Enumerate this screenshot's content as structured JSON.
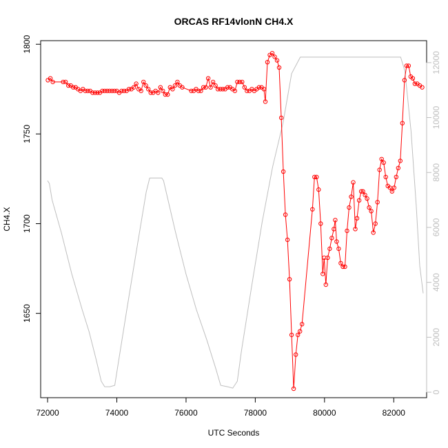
{
  "chart_data": {
    "type": "line",
    "title": "ORCAS RF14vlonN CH4.X",
    "xlabel": "UTC Seconds",
    "ylabel": "CH4.X",
    "xlim": [
      71800,
      82950
    ],
    "ylim": [
      1603,
      1802
    ],
    "y2lim": [
      -200,
      12800
    ],
    "x_ticks": [
      72000,
      74000,
      76000,
      78000,
      80000,
      82000
    ],
    "y_ticks": [
      1650,
      1700,
      1750,
      1800
    ],
    "y2_ticks": [
      0,
      2000,
      4000,
      6000,
      8000,
      10000,
      12000
    ],
    "colors": {
      "ch4": "#ff0000",
      "altitude": "#bebebe"
    },
    "series": [
      {
        "style": "line-with-open-circles",
        "color": "#ff0000",
        "axis": "left",
        "points": [
          [
            72010,
            1780
          ],
          [
            72080,
            1781
          ],
          [
            72150,
            1779
          ],
          [
            72450,
            1779
          ],
          [
            72520,
            1779
          ],
          [
            72600,
            1777
          ],
          [
            72670,
            1777
          ],
          [
            72740,
            1776
          ],
          [
            72810,
            1776
          ],
          [
            72880,
            1775
          ],
          [
            72950,
            1774
          ],
          [
            73020,
            1775
          ],
          [
            73090,
            1774
          ],
          [
            73160,
            1774
          ],
          [
            73230,
            1774
          ],
          [
            73300,
            1773
          ],
          [
            73370,
            1773
          ],
          [
            73440,
            1773
          ],
          [
            73510,
            1773
          ],
          [
            73580,
            1774
          ],
          [
            73650,
            1774
          ],
          [
            73720,
            1774
          ],
          [
            73790,
            1774
          ],
          [
            73860,
            1774
          ],
          [
            73930,
            1774
          ],
          [
            74000,
            1774
          ],
          [
            74070,
            1773
          ],
          [
            74140,
            1774
          ],
          [
            74210,
            1774
          ],
          [
            74280,
            1774
          ],
          [
            74350,
            1775
          ],
          [
            74420,
            1775
          ],
          [
            74490,
            1776
          ],
          [
            74560,
            1778
          ],
          [
            74630,
            1775
          ],
          [
            74700,
            1774
          ],
          [
            74770,
            1779
          ],
          [
            74840,
            1777
          ],
          [
            74910,
            1775
          ],
          [
            74980,
            1773
          ],
          [
            75050,
            1773
          ],
          [
            75120,
            1774
          ],
          [
            75190,
            1773
          ],
          [
            75260,
            1776
          ],
          [
            75330,
            1774
          ],
          [
            75400,
            1772
          ],
          [
            75470,
            1772
          ],
          [
            75540,
            1776
          ],
          [
            75610,
            1775
          ],
          [
            75680,
            1777
          ],
          [
            75750,
            1779
          ],
          [
            75820,
            1777
          ],
          [
            75890,
            1776
          ],
          [
            76150,
            1774
          ],
          [
            76220,
            1774
          ],
          [
            76290,
            1775
          ],
          [
            76360,
            1774
          ],
          [
            76430,
            1774
          ],
          [
            76500,
            1776
          ],
          [
            76570,
            1776
          ],
          [
            76640,
            1781
          ],
          [
            76710,
            1776
          ],
          [
            76780,
            1779
          ],
          [
            76850,
            1777
          ],
          [
            76920,
            1775
          ],
          [
            76990,
            1775
          ],
          [
            77060,
            1775
          ],
          [
            77130,
            1775
          ],
          [
            77200,
            1776
          ],
          [
            77270,
            1776
          ],
          [
            77340,
            1775
          ],
          [
            77410,
            1774
          ],
          [
            77480,
            1779
          ],
          [
            77550,
            1779
          ],
          [
            77620,
            1779
          ],
          [
            77690,
            1776
          ],
          [
            77760,
            1774
          ],
          [
            77830,
            1774
          ],
          [
            77900,
            1775
          ],
          [
            77970,
            1774
          ],
          [
            78040,
            1775
          ],
          [
            78110,
            1776
          ],
          [
            78180,
            1776
          ],
          [
            78250,
            1775
          ],
          [
            78290,
            1768
          ],
          [
            78350,
            1790
          ],
          [
            78420,
            1794
          ],
          [
            78490,
            1795
          ],
          [
            78560,
            1793
          ],
          [
            78630,
            1791
          ],
          [
            78690,
            1787
          ],
          [
            78750,
            1759
          ],
          [
            78810,
            1729
          ],
          [
            78870,
            1705
          ],
          [
            78930,
            1691
          ],
          [
            78990,
            1669
          ],
          [
            79050,
            1638
          ],
          [
            79110,
            1608
          ],
          [
            79170,
            1627
          ],
          [
            79230,
            1638
          ],
          [
            79290,
            1640
          ],
          [
            79350,
            1644
          ],
          [
            79650,
            1708
          ],
          [
            79710,
            1726
          ],
          [
            79770,
            1726
          ],
          [
            79830,
            1719
          ],
          [
            79890,
            1700
          ],
          [
            79950,
            1672
          ],
          [
            79990,
            1681
          ],
          [
            80040,
            1666
          ],
          [
            80090,
            1681
          ],
          [
            80150,
            1686
          ],
          [
            80210,
            1692
          ],
          [
            80270,
            1697
          ],
          [
            80310,
            1702
          ],
          [
            80350,
            1690
          ],
          [
            80410,
            1686
          ],
          [
            80470,
            1678
          ],
          [
            80530,
            1676
          ],
          [
            80590,
            1676
          ],
          [
            80650,
            1696
          ],
          [
            80710,
            1709
          ],
          [
            80770,
            1715
          ],
          [
            80830,
            1723
          ],
          [
            80890,
            1697
          ],
          [
            80940,
            1703
          ],
          [
            81000,
            1713
          ],
          [
            81060,
            1718
          ],
          [
            81110,
            1718
          ],
          [
            81170,
            1716
          ],
          [
            81230,
            1714
          ],
          [
            81290,
            1709
          ],
          [
            81350,
            1707
          ],
          [
            81410,
            1695
          ],
          [
            81470,
            1700
          ],
          [
            81530,
            1712
          ],
          [
            81590,
            1730
          ],
          [
            81650,
            1736
          ],
          [
            81710,
            1734
          ],
          [
            81770,
            1726
          ],
          [
            81830,
            1721
          ],
          [
            81890,
            1720
          ],
          [
            81950,
            1718
          ],
          [
            82010,
            1720
          ],
          [
            82070,
            1726
          ],
          [
            82130,
            1731
          ],
          [
            82190,
            1735
          ],
          [
            82250,
            1756
          ],
          [
            82310,
            1780
          ],
          [
            82370,
            1788
          ],
          [
            82430,
            1788
          ],
          [
            82490,
            1782
          ],
          [
            82550,
            1781
          ],
          [
            82610,
            1778
          ],
          [
            82680,
            1778
          ],
          [
            82750,
            1777
          ],
          [
            82820,
            1776
          ]
        ]
      },
      {
        "style": "line",
        "color": "#bebebe",
        "axis": "right",
        "points": [
          [
            72000,
            7700
          ],
          [
            72050,
            7600
          ],
          [
            72130,
            7000
          ],
          [
            72400,
            5800
          ],
          [
            72700,
            4300
          ],
          [
            73000,
            3000
          ],
          [
            73200,
            2200
          ],
          [
            73400,
            1200
          ],
          [
            73550,
            400
          ],
          [
            73650,
            200
          ],
          [
            73800,
            200
          ],
          [
            73940,
            250
          ],
          [
            74060,
            1200
          ],
          [
            74300,
            3100
          ],
          [
            74600,
            5400
          ],
          [
            74850,
            7300
          ],
          [
            74950,
            7800
          ],
          [
            75300,
            7800
          ],
          [
            75350,
            7700
          ],
          [
            75700,
            5800
          ],
          [
            76000,
            4300
          ],
          [
            76300,
            3000
          ],
          [
            76600,
            1900
          ],
          [
            76850,
            900
          ],
          [
            77000,
            250
          ],
          [
            77200,
            200
          ],
          [
            77350,
            150
          ],
          [
            77480,
            400
          ],
          [
            77600,
            1500
          ],
          [
            77900,
            3900
          ],
          [
            78200,
            6200
          ],
          [
            78500,
            8200
          ],
          [
            78800,
            9800
          ],
          [
            79050,
            11600
          ],
          [
            79300,
            12200
          ],
          [
            80000,
            12200
          ],
          [
            81000,
            12200
          ],
          [
            82200,
            12200
          ],
          [
            82320,
            11700
          ],
          [
            82500,
            9500
          ],
          [
            82650,
            6800
          ],
          [
            82750,
            4600
          ],
          [
            82850,
            3600
          ]
        ]
      }
    ]
  }
}
